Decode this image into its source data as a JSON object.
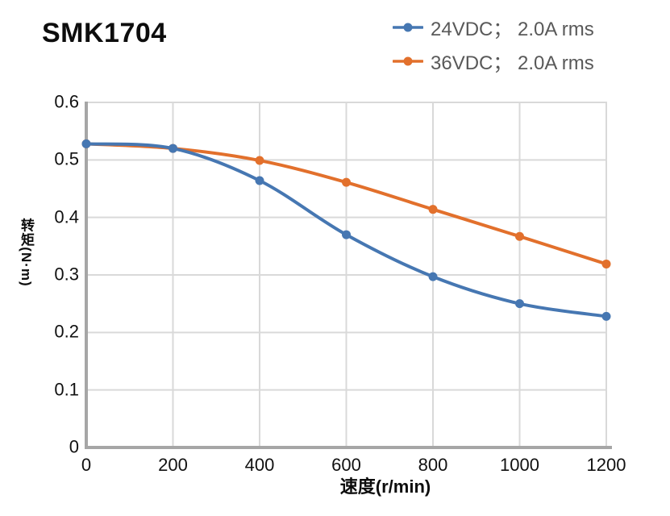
{
  "title": "SMK1704",
  "legend": {
    "items": [
      {
        "label": "24VDC； 2.0A rms",
        "color": "#4677b2"
      },
      {
        "label": "36VDC； 2.0A rms",
        "color": "#e2702c"
      }
    ]
  },
  "chart_data": {
    "type": "line",
    "title": "SMK1704",
    "xlabel": "速度(r/min)",
    "ylabel": "转矩(N·m)",
    "x": [
      0,
      200,
      400,
      600,
      800,
      1000,
      1200
    ],
    "series": [
      {
        "name": "24VDC； 2.0A rms",
        "color": "#4677b2",
        "values": [
          0.528,
          0.52,
          0.464,
          0.37,
          0.297,
          0.25,
          0.228
        ]
      },
      {
        "name": "36VDC； 2.0A rms",
        "color": "#e2702c",
        "values": [
          0.528,
          0.52,
          0.499,
          0.461,
          0.414,
          0.367,
          0.319
        ]
      }
    ],
    "xlim": [
      0,
      1200
    ],
    "ylim": [
      0,
      0.6
    ],
    "x_ticks": [
      0,
      200,
      400,
      600,
      800,
      1000,
      1200
    ],
    "y_ticks": [
      0,
      0.1,
      0.2,
      0.3,
      0.4,
      0.5,
      0.6
    ],
    "grid": true,
    "legend_position": "top-right",
    "colors": {
      "gridline": "#d9d9d9",
      "axis": "#a6a6a6",
      "tick_label": "#111111",
      "legend_text": "#595959",
      "title_text": "#0d0d0d"
    }
  }
}
